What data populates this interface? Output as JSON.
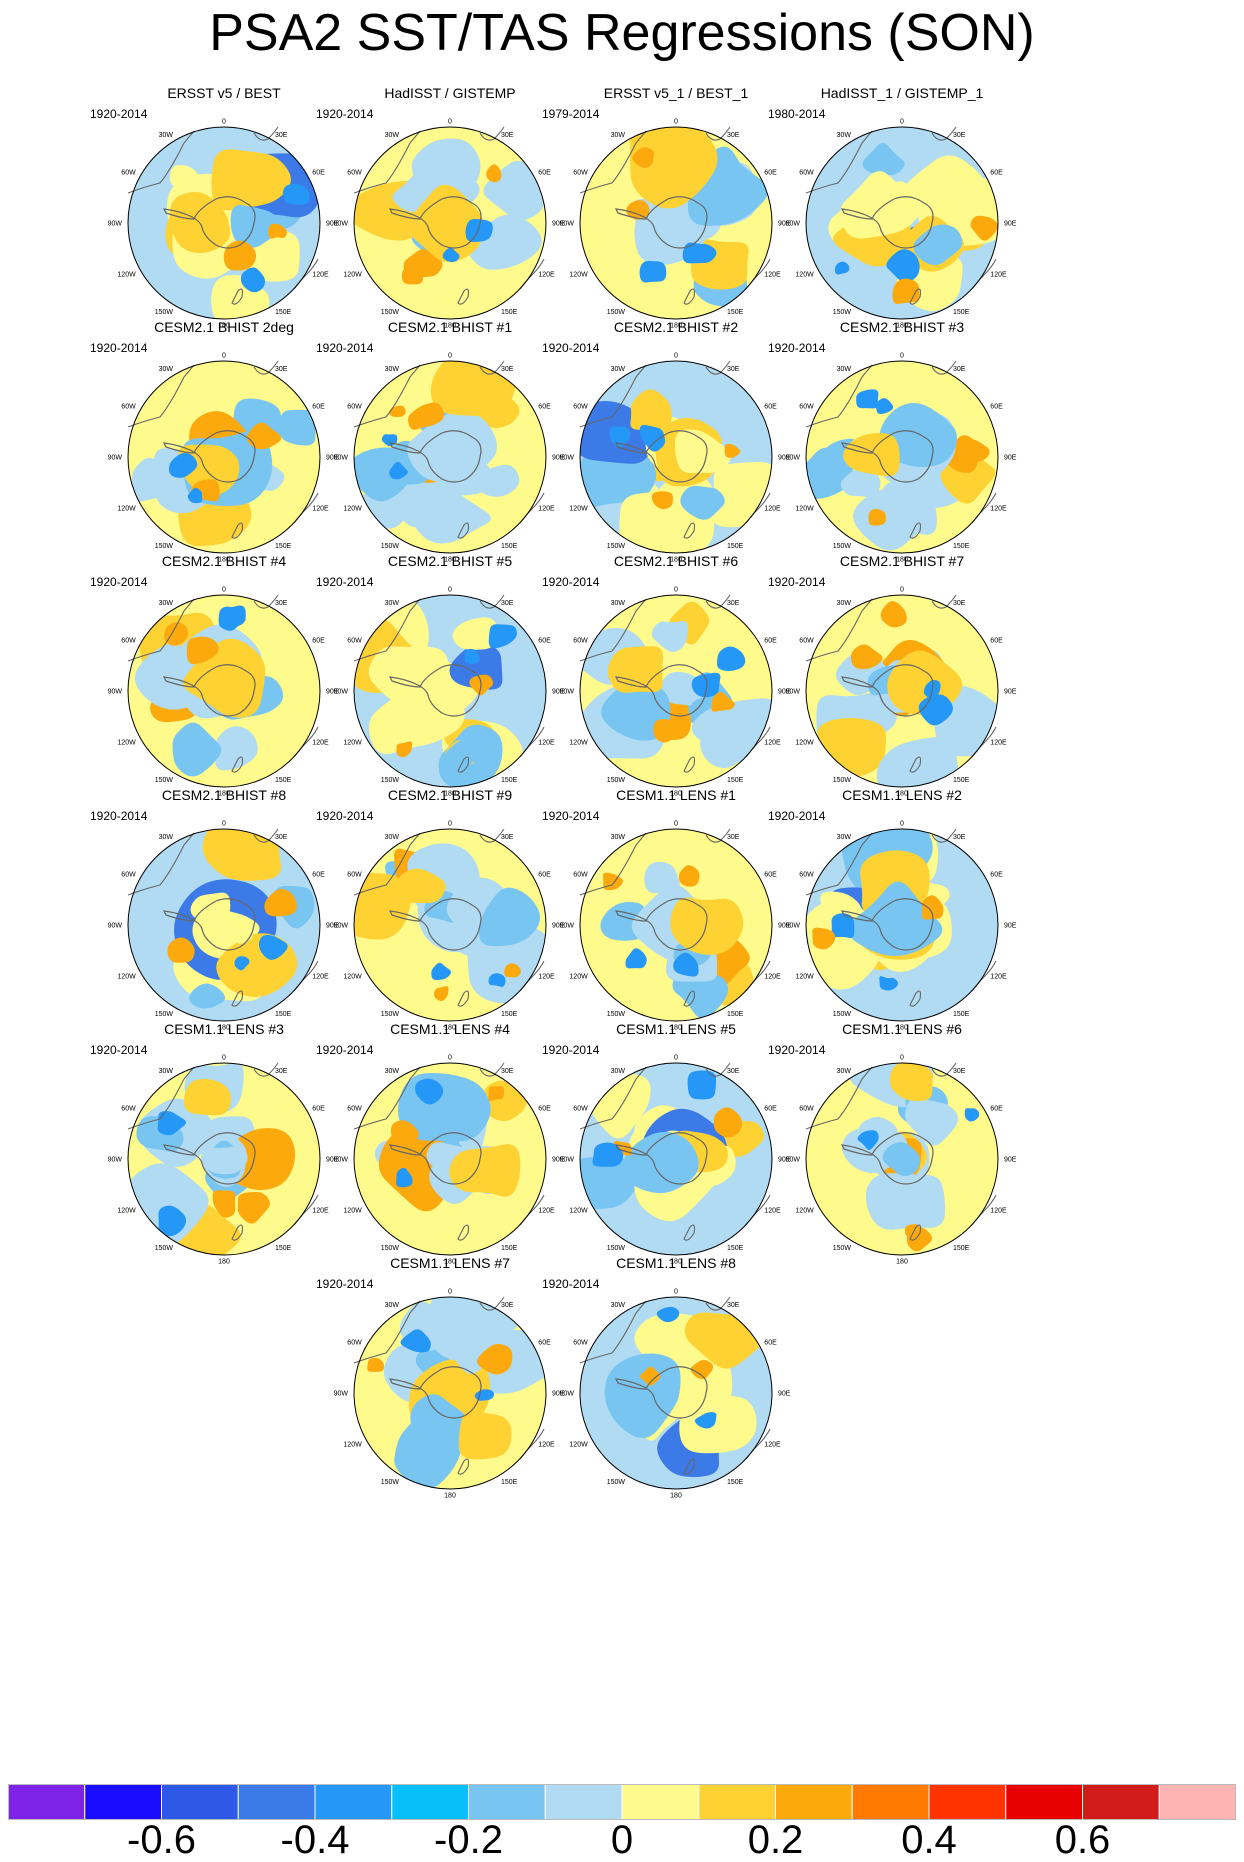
{
  "title": "PSA2 SST/TAS Regressions (SON)",
  "chart_data": {
    "type": "heatmap",
    "projection": "south-polar-stereographic",
    "legend_placement": "bottom",
    "longitude_labels": [
      "0",
      "30E",
      "60E",
      "90E",
      "120E",
      "150E",
      "180",
      "150W",
      "120W",
      "90W",
      "60W",
      "30W"
    ],
    "colorbar": {
      "colors": [
        "#7f22e8",
        "#1a0dff",
        "#2e59e6",
        "#3c7ae8",
        "#2597f7",
        "#08bff9",
        "#78c5f2",
        "#b0dbf2",
        "#fffa8c",
        "#fed233",
        "#fca90e",
        "#fe7a00",
        "#fd3400",
        "#e80000",
        "#d21b1b",
        "#ffb4b4"
      ],
      "tick_labels": [
        "-0.6",
        "-0.4",
        "-0.2",
        "0",
        "0.2",
        "0.4",
        "0.6"
      ]
    },
    "panels": [
      {
        "title": "ERSST v5 / BEST",
        "period": "1920-2014"
      },
      {
        "title": "HadISST / GISTEMP",
        "period": "1920-2014"
      },
      {
        "title": "ERSST v5_1 / BEST_1",
        "period": "1979-2014"
      },
      {
        "title": "HadISST_1 / GISTEMP_1",
        "period": "1980-2014"
      },
      {
        "title": "CESM2.1 BHIST 2deg",
        "period": "1920-2014"
      },
      {
        "title": "CESM2.1 BHIST #1",
        "period": "1920-2014"
      },
      {
        "title": "CESM2.1 BHIST #2",
        "period": "1920-2014"
      },
      {
        "title": "CESM2.1 BHIST #3",
        "period": "1920-2014"
      },
      {
        "title": "CESM2.1 BHIST #4",
        "period": "1920-2014"
      },
      {
        "title": "CESM2.1 BHIST #5",
        "period": "1920-2014"
      },
      {
        "title": "CESM2.1 BHIST #6",
        "period": "1920-2014"
      },
      {
        "title": "CESM2.1 BHIST #7",
        "period": "1920-2014"
      },
      {
        "title": "CESM2.1 BHIST #8",
        "period": "1920-2014"
      },
      {
        "title": "CESM2.1 BHIST #9",
        "period": "1920-2014"
      },
      {
        "title": "CESM1.1 LENS #1",
        "period": "1920-2014"
      },
      {
        "title": "CESM1.1 LENS #2",
        "period": "1920-2014"
      },
      {
        "title": "CESM1.1 LENS #3",
        "period": "1920-2014"
      },
      {
        "title": "CESM1.1 LENS #4",
        "period": "1920-2014"
      },
      {
        "title": "CESM1.1 LENS #5",
        "period": "1920-2014"
      },
      {
        "title": "CESM1.1 LENS #6",
        "period": "1920-2014"
      },
      {
        "title": "CESM1.1 LENS #7",
        "period": "1920-2014"
      },
      {
        "title": "CESM1.1 LENS #8",
        "period": "1920-2014"
      }
    ]
  }
}
